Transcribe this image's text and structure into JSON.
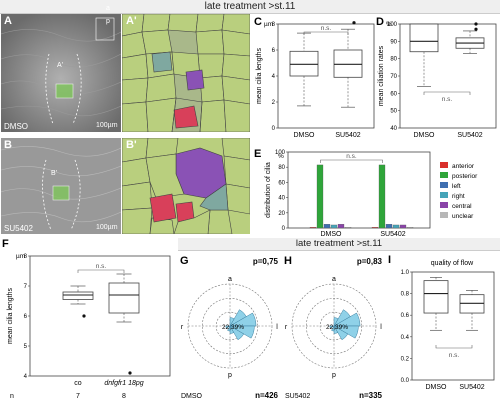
{
  "banner_top": "late treatment >st.11",
  "banner_bottom": "late treatment >st.11",
  "panels": {
    "A": {
      "label": "A",
      "label2": "A'",
      "condition": "DMSO",
      "scale": "100µm",
      "corner_a": "a",
      "corner_p": "p",
      "inset": "A'"
    },
    "B": {
      "label": "B",
      "label2": "B'",
      "condition": "SU5402",
      "scale": "100µm",
      "inset": "B'"
    },
    "C": {
      "label": "C",
      "unit": "µm",
      "ylabel": "mean cilia lengths",
      "ns": "n.s.",
      "ticks": [
        "8",
        "6",
        "4",
        "2",
        "0"
      ],
      "groups": [
        "DMSO",
        "SU5402"
      ]
    },
    "D": {
      "label": "D",
      "unit": "%",
      "ylabel": "mean ciliation rates",
      "ns": "n.s.",
      "ticks": [
        "100",
        "90",
        "80",
        "70",
        "60",
        "50",
        "40"
      ],
      "groups": [
        "DMSO",
        "SU5402"
      ]
    },
    "E": {
      "label": "E",
      "unit": "%",
      "ylabel": "distribution of cilia",
      "ns": "n.s.",
      "ticks": [
        "100",
        "80",
        "60",
        "40",
        "20",
        "0"
      ],
      "groups": [
        "DMSO",
        "SU5402"
      ],
      "legend": [
        {
          "name": "anterior",
          "color": "#d9302c"
        },
        {
          "name": "posterior",
          "color": "#2fa53a"
        },
        {
          "name": "left",
          "color": "#3f6fb0"
        },
        {
          "name": "right",
          "color": "#46a4b8"
        },
        {
          "name": "central",
          "color": "#8a44a8"
        },
        {
          "name": "unclear",
          "color": "#b7b7b7"
        }
      ]
    },
    "F": {
      "label": "F",
      "unit": "µm",
      "ylabel": "mean cilia lengths",
      "ns": "n.s.",
      "ticks": [
        "8",
        "7",
        "6",
        "5",
        "4"
      ],
      "groups": [
        "co",
        "dnfgfr1 18pg"
      ],
      "n_label": "n",
      "n_values": [
        "7",
        "8"
      ]
    },
    "G": {
      "label": "G",
      "p": "p=0,75",
      "n": "n=426",
      "condition": "DMSO",
      "pct": "22,39%",
      "a": "a",
      "p_dir": "p",
      "l": "l",
      "r": "r"
    },
    "H": {
      "label": "H",
      "p": "p=0,83",
      "n": "n=335",
      "condition": "SU5402",
      "pct": "22,39%",
      "a": "a",
      "p_dir": "p",
      "l": "l",
      "r": "r"
    },
    "I": {
      "label": "I",
      "title": "quality of flow",
      "ns": "n.s.",
      "ticks": [
        "1.0",
        "0.8",
        "0.6",
        "0.4",
        "0.2",
        "0.0"
      ],
      "groups": [
        "DMSO",
        "SU5402"
      ]
    }
  },
  "chart_data": [
    {
      "type": "box",
      "panel": "C",
      "ylabel": "mean cilia lengths",
      "ylim": [
        0,
        8
      ],
      "series": [
        {
          "name": "DMSO",
          "min": 1.7,
          "q1": 4.0,
          "median": 4.9,
          "q3": 5.9,
          "max": 7.3,
          "outliers": []
        },
        {
          "name": "SU5402",
          "min": 1.6,
          "q1": 3.9,
          "median": 4.9,
          "q3": 6.0,
          "max": 7.6,
          "outliers": [
            8.1
          ]
        }
      ]
    },
    {
      "type": "box",
      "panel": "D",
      "ylabel": "mean ciliation rates",
      "ylim": [
        40,
        100
      ],
      "series": [
        {
          "name": "DMSO",
          "min": 64,
          "q1": 84,
          "median": 90,
          "q3": 100,
          "max": 100,
          "outliers": []
        },
        {
          "name": "SU5402",
          "min": 83,
          "q1": 86,
          "median": 89,
          "q3": 92,
          "max": 96,
          "outliers": [
            100,
            97
          ]
        }
      ]
    },
    {
      "type": "bar",
      "panel": "E",
      "ylabel": "distribution of cilia",
      "ylim": [
        0,
        100
      ],
      "categories": [
        "DMSO",
        "SU5402"
      ],
      "series": [
        {
          "name": "anterior",
          "values": [
            1,
            1
          ]
        },
        {
          "name": "posterior",
          "values": [
            83,
            83
          ]
        },
        {
          "name": "left",
          "values": [
            5,
            5
          ]
        },
        {
          "name": "right",
          "values": [
            4,
            4
          ]
        },
        {
          "name": "central",
          "values": [
            5,
            4
          ]
        },
        {
          "name": "unclear",
          "values": [
            1,
            1
          ]
        }
      ]
    },
    {
      "type": "box",
      "panel": "F",
      "ylabel": "mean cilia lengths",
      "ylim": [
        4,
        8
      ],
      "series": [
        {
          "name": "co",
          "min": 6.4,
          "q1": 6.55,
          "median": 6.7,
          "q3": 6.8,
          "max": 7.0,
          "outliers": [
            6.0
          ]
        },
        {
          "name": "dnfgfr1 18pg",
          "min": 5.8,
          "q1": 6.1,
          "median": 6.7,
          "q3": 7.1,
          "max": 7.4,
          "outliers": [
            4.1
          ]
        }
      ]
    },
    {
      "type": "box",
      "panel": "I",
      "ylabel": "quality of flow",
      "ylim": [
        0,
        1
      ],
      "series": [
        {
          "name": "DMSO",
          "min": 0.46,
          "q1": 0.62,
          "median": 0.8,
          "q3": 0.92,
          "max": 0.95,
          "outliers": []
        },
        {
          "name": "SU5402",
          "min": 0.46,
          "q1": 0.62,
          "median": 0.71,
          "q3": 0.79,
          "max": 0.83,
          "outliers": []
        }
      ]
    }
  ]
}
